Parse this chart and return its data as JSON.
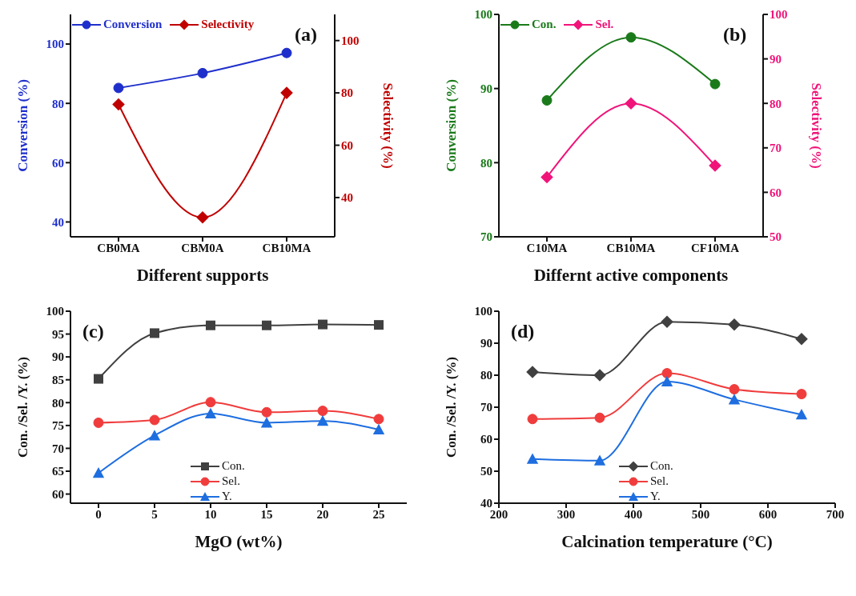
{
  "chart_data": [
    {
      "type": "line",
      "annotations": [
        "(a)"
      ],
      "xlabel": "Different supports",
      "ylabel": "Conversion (%)",
      "y2label": "Selectivity (%)",
      "categories": [
        "CB0MA",
        "CBM0A",
        "CB10MA"
      ],
      "ylim": [
        35,
        110
      ],
      "yticks": [
        40,
        60,
        80,
        100
      ],
      "y2lim": [
        25,
        110
      ],
      "y2ticks": [
        40,
        60,
        80,
        100
      ],
      "legend": "top left",
      "series": [
        {
          "name": "Conversion",
          "color": "#1f2fcc",
          "marker": "circle",
          "values": [
            85.2,
            90.2,
            97.0
          ]
        },
        {
          "name": "Selectivity",
          "color": "#c00000",
          "marker": "diamond",
          "axis": "y2",
          "values": [
            75.6,
            32.4,
            80.0
          ]
        }
      ]
    },
    {
      "type": "line",
      "annotations": [
        "(b)"
      ],
      "xlabel": "Differnt active components",
      "ylabel": "Conversion (%)",
      "y2label": "Selectivity (%)",
      "categories": [
        "C10MA",
        "CB10MA",
        "CF10MA"
      ],
      "ylim": [
        70,
        100
      ],
      "yticks": [
        70,
        80,
        90,
        100
      ],
      "y2lim": [
        50,
        100
      ],
      "y2ticks": [
        50,
        60,
        70,
        80,
        90,
        100
      ],
      "legend": "top left",
      "series": [
        {
          "name": "Con.",
          "color": "#1a7a1a",
          "marker": "circle",
          "values": [
            88.4,
            96.9,
            90.6
          ]
        },
        {
          "name": "Sel.",
          "color": "#f0147a",
          "marker": "diamond",
          "axis": "y2",
          "values": [
            63.4,
            80.0,
            66.0
          ]
        }
      ]
    },
    {
      "type": "line",
      "annotations": [
        "(c)"
      ],
      "xlabel": "MgO (wt%)",
      "ylabel": "Con. /Sel. /Y. (%)",
      "x": [
        0,
        5,
        10,
        15,
        20,
        25
      ],
      "xlim": [
        -2.5,
        27.5
      ],
      "xticks": [
        0,
        5,
        10,
        15,
        20,
        25
      ],
      "ylim": [
        58,
        100
      ],
      "yticks": [
        60,
        65,
        70,
        75,
        80,
        85,
        90,
        95,
        100
      ],
      "legend": "bottom",
      "series": [
        {
          "name": "Con.",
          "color": "#404040",
          "marker": "square",
          "values": [
            85.2,
            95.2,
            96.9,
            96.9,
            97.1,
            97.0
          ]
        },
        {
          "name": "Sel.",
          "color": "#f03c3c",
          "marker": "circle",
          "values": [
            75.6,
            76.2,
            80.1,
            77.9,
            78.2,
            76.4
          ]
        },
        {
          "name": "Y.",
          "color": "#1e6ee0",
          "marker": "triangle",
          "values": [
            64.6,
            72.8,
            77.6,
            75.6,
            76.0,
            74.1
          ]
        }
      ]
    },
    {
      "type": "line",
      "annotations": [
        "(d)"
      ],
      "xlabel": "Calcination temperature (°C)",
      "ylabel": "Con. /Sel. /Y. (%)",
      "x": [
        250,
        350,
        450,
        550,
        650
      ],
      "xlim": [
        200,
        700
      ],
      "xticks": [
        200,
        300,
        400,
        500,
        600,
        700
      ],
      "ylim": [
        40,
        100
      ],
      "yticks": [
        40,
        50,
        60,
        70,
        80,
        90,
        100
      ],
      "legend": "bottom",
      "series": [
        {
          "name": "Con.",
          "color": "#404040",
          "marker": "diamond",
          "values": [
            81.0,
            80.0,
            96.7,
            95.8,
            91.3
          ]
        },
        {
          "name": "Sel.",
          "color": "#f03c3c",
          "marker": "circle",
          "values": [
            66.3,
            66.7,
            80.6,
            75.6,
            74.1
          ]
        },
        {
          "name": "Y.",
          "color": "#1e6ee0",
          "marker": "triangle",
          "values": [
            53.8,
            53.3,
            78.0,
            72.4,
            67.7
          ]
        }
      ]
    }
  ]
}
